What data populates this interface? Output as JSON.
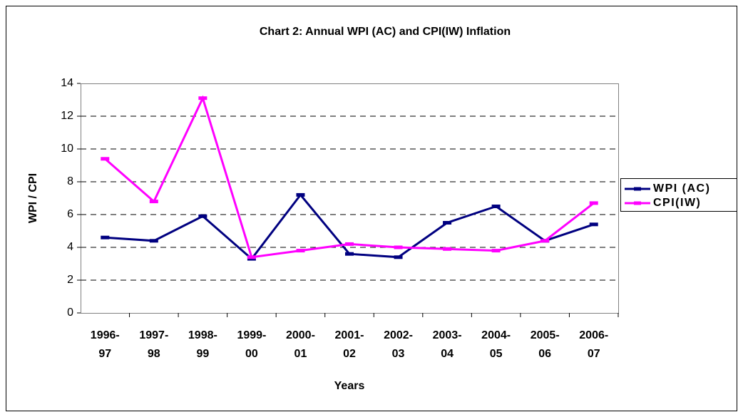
{
  "chart_data": {
    "type": "line",
    "title": "Chart 2: Annual WPI (AC) and CPI(IW) Inflation",
    "x_label": "Years",
    "y_label": "WPI / CPI",
    "categories": [
      "1996-97",
      "1997-98",
      "1998-99",
      "1999-00",
      "2000-01",
      "2001-02",
      "2002-03",
      "2003-04",
      "2004-05",
      "2005-06",
      "2006-07"
    ],
    "series": [
      {
        "name": "WPI (AC)",
        "color": "#000080",
        "values": [
          4.6,
          4.4,
          5.9,
          3.3,
          7.2,
          3.6,
          3.4,
          5.5,
          6.5,
          4.4,
          5.4
        ]
      },
      {
        "name": "CPI(IW)",
        "color": "#ff00ff",
        "values": [
          9.4,
          6.8,
          13.1,
          3.4,
          3.8,
          4.2,
          4.0,
          3.9,
          3.8,
          4.4,
          6.7
        ]
      }
    ],
    "ylim": [
      0,
      14
    ],
    "yticks": [
      0,
      2,
      4,
      6,
      8,
      10,
      12,
      14
    ],
    "grid": true,
    "legend": "right"
  }
}
